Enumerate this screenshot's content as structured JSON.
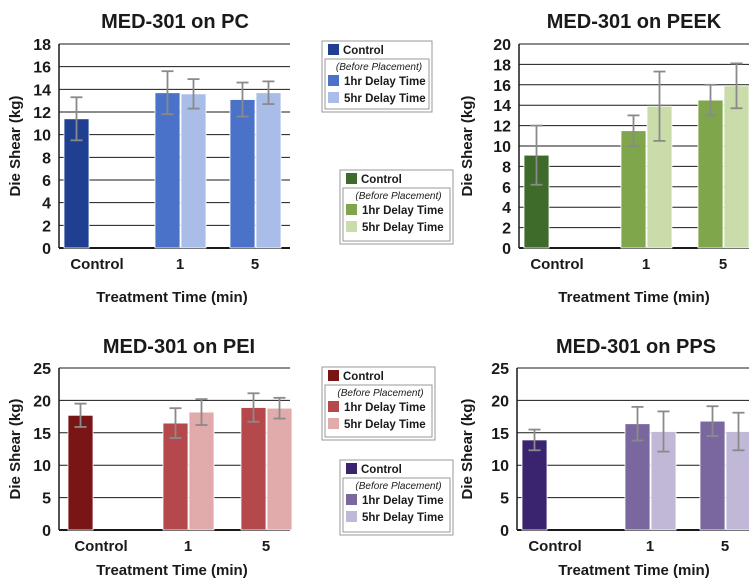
{
  "chart_data": [
    {
      "type": "bar",
      "title": "MED-301 on PC",
      "xlabel": "Treatment Time (min)",
      "ylabel": "Die Shear (kg)",
      "ylim": [
        0,
        18
      ],
      "yticks": [
        0,
        2,
        4,
        6,
        8,
        10,
        12,
        14,
        16,
        18
      ],
      "categories": [
        "Control",
        "1",
        "5"
      ],
      "series": [
        {
          "name": "Control",
          "values": [
            11.4,
            null,
            null
          ],
          "errors": [
            1.9,
            null,
            null
          ],
          "color": "#1f3f91"
        },
        {
          "name": "1hr Delay Time",
          "values": [
            null,
            13.7,
            13.1
          ],
          "errors": [
            null,
            1.9,
            1.5
          ],
          "color": "#4a72c8"
        },
        {
          "name": "5hr Delay Time",
          "values": [
            null,
            13.6,
            13.7
          ],
          "errors": [
            null,
            1.3,
            1.0
          ],
          "color": "#a9bde8"
        }
      ],
      "legend": {
        "header": "(Before Placement)",
        "placement": "right"
      },
      "grid": true
    },
    {
      "type": "bar",
      "title": "MED-301 on PEEK",
      "xlabel": "Treatment Time (min)",
      "ylabel": "Die Shear (kg)",
      "ylim": [
        0,
        20
      ],
      "yticks": [
        0,
        2,
        4,
        6,
        8,
        10,
        12,
        14,
        16,
        18,
        20
      ],
      "categories": [
        "Control",
        "1",
        "5"
      ],
      "series": [
        {
          "name": "Control",
          "values": [
            9.1,
            null,
            null
          ],
          "errors": [
            2.9,
            null,
            null
          ],
          "color": "#3e6b2a"
        },
        {
          "name": "1hr Delay Time",
          "values": [
            null,
            11.5,
            14.5
          ],
          "errors": [
            null,
            1.5,
            1.5
          ],
          "color": "#7fa64a"
        },
        {
          "name": "5hr Delay Time",
          "values": [
            null,
            13.9,
            15.9
          ],
          "errors": [
            null,
            3.4,
            2.2
          ],
          "color": "#c9dcaa"
        }
      ],
      "legend": {
        "header": "(Before Placement)",
        "placement": "left"
      },
      "grid": true
    },
    {
      "type": "bar",
      "title": "MED-301 on PEI",
      "xlabel": "Treatment Time (min)",
      "ylabel": "Die Shear (kg)",
      "ylim": [
        0,
        25
      ],
      "yticks": [
        0,
        5,
        10,
        15,
        20,
        25
      ],
      "categories": [
        "Control",
        "1",
        "5"
      ],
      "series": [
        {
          "name": "Control",
          "values": [
            17.7,
            null,
            null
          ],
          "errors": [
            1.8,
            null,
            null
          ],
          "color": "#7a1515"
        },
        {
          "name": "1hr Delay Time",
          "values": [
            null,
            16.5,
            18.9
          ],
          "errors": [
            null,
            2.3,
            2.2
          ],
          "color": "#b5484a"
        },
        {
          "name": "5hr Delay Time",
          "values": [
            null,
            18.2,
            18.8
          ],
          "errors": [
            null,
            2.0,
            1.6
          ],
          "color": "#e2abab"
        }
      ],
      "legend": {
        "header": "(Before Placement)",
        "placement": "right"
      },
      "grid": true
    },
    {
      "type": "bar",
      "title": "MED-301 on PPS",
      "xlabel": "Treatment Time (min)",
      "ylabel": "Die Shear (kg)",
      "ylim": [
        0,
        25
      ],
      "yticks": [
        0,
        5,
        10,
        15,
        20,
        25
      ],
      "categories": [
        "Control",
        "1",
        "5"
      ],
      "series": [
        {
          "name": "Control",
          "values": [
            13.9,
            null,
            null
          ],
          "errors": [
            1.6,
            null,
            null
          ],
          "color": "#3a2470"
        },
        {
          "name": "1hr Delay Time",
          "values": [
            null,
            16.4,
            16.8
          ],
          "errors": [
            null,
            2.6,
            2.3
          ],
          "color": "#7a67a0"
        },
        {
          "name": "5hr Delay Time",
          "values": [
            null,
            15.2,
            15.2
          ],
          "errors": [
            null,
            3.1,
            2.9
          ],
          "color": "#c1b8d8"
        }
      ],
      "legend": {
        "header": "(Before Placement)",
        "placement": "left"
      },
      "grid": true
    }
  ]
}
